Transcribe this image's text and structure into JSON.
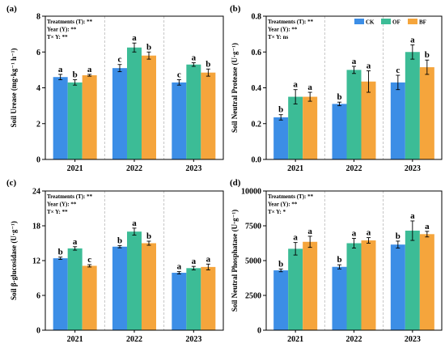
{
  "colors": {
    "CK": "#3c8ee6",
    "OF": "#3cbc96",
    "BF": "#f5a53c"
  },
  "legend": [
    "CK",
    "OF",
    "BF"
  ],
  "chart_data": [
    {
      "type": "bar",
      "panel": "(a)",
      "ylabel": "Soil Urease (mg·kg⁻¹ h⁻¹)",
      "ylim": [
        0,
        8
      ],
      "yticks": [
        0,
        2,
        4,
        6,
        8
      ],
      "ytick_labels": [
        "0",
        "2",
        "4",
        "6",
        "8"
      ],
      "categories": [
        "2021",
        "2022",
        "2023"
      ],
      "stats": [
        "Treatments (T): **",
        "Year (Y): **",
        "T× Y: **"
      ],
      "series": [
        {
          "name": "CK",
          "values": [
            4.6,
            5.1,
            4.3
          ],
          "errors": [
            0.15,
            0.2,
            0.15
          ],
          "letters": [
            "a",
            "c",
            "c"
          ]
        },
        {
          "name": "OF",
          "values": [
            4.3,
            6.25,
            5.3
          ],
          "errors": [
            0.15,
            0.25,
            0.1
          ],
          "letters": [
            "b",
            "a",
            "a"
          ]
        },
        {
          "name": "BF",
          "values": [
            4.7,
            5.8,
            4.85
          ],
          "errors": [
            0.05,
            0.2,
            0.2
          ],
          "letters": [
            "a",
            "b",
            "b"
          ]
        }
      ]
    },
    {
      "type": "bar",
      "panel": "(b)",
      "ylabel": "Soil Neutral Protease (U·g⁻¹)",
      "ylim": [
        0,
        0.8
      ],
      "yticks": [
        0,
        0.2,
        0.4,
        0.6,
        0.8
      ],
      "ytick_labels": [
        "0.0",
        "0.2",
        "0.4",
        "0.6",
        "0.8"
      ],
      "categories": [
        "2021",
        "2022",
        "2023"
      ],
      "stats": [
        "Treatments (T): **",
        "Year (Y): **",
        "T× Y: ns"
      ],
      "series": [
        {
          "name": "CK",
          "values": [
            0.235,
            0.31,
            0.43
          ],
          "errors": [
            0.015,
            0.01,
            0.04
          ],
          "letters": [
            "b",
            "b",
            "c"
          ]
        },
        {
          "name": "OF",
          "values": [
            0.35,
            0.5,
            0.6
          ],
          "errors": [
            0.04,
            0.02,
            0.04
          ],
          "letters": [
            "a",
            "a",
            "a"
          ]
        },
        {
          "name": "BF",
          "values": [
            0.35,
            0.435,
            0.515
          ],
          "errors": [
            0.025,
            0.06,
            0.04
          ],
          "letters": [
            "a",
            "a",
            "b"
          ]
        }
      ]
    },
    {
      "type": "bar",
      "panel": "(c)",
      "ylabel": "Soil β-glucosidase (U·g⁻¹)",
      "ylim": [
        0,
        24
      ],
      "yticks": [
        0,
        6,
        12,
        18,
        24
      ],
      "ytick_labels": [
        "0",
        "6",
        "12",
        "18",
        "24"
      ],
      "categories": [
        "2021",
        "2022",
        "2023"
      ],
      "stats": [
        "Treatments (T): **",
        "Year (Y): **",
        "T× Y: **"
      ],
      "series": [
        {
          "name": "CK",
          "values": [
            12.4,
            14.4,
            9.9
          ],
          "errors": [
            0.2,
            0.2,
            0.2
          ],
          "letters": [
            "b",
            "b",
            "a"
          ]
        },
        {
          "name": "OF",
          "values": [
            14.1,
            17.0,
            10.7
          ],
          "errors": [
            0.3,
            0.6,
            0.3
          ],
          "letters": [
            "a",
            "a",
            "a"
          ]
        },
        {
          "name": "BF",
          "values": [
            11.1,
            15.0,
            10.9
          ],
          "errors": [
            0.2,
            0.35,
            0.5
          ],
          "letters": [
            "c",
            "b",
            "a"
          ]
        }
      ]
    },
    {
      "type": "bar",
      "panel": "(d)",
      "ylabel": "Soil Neutral Phosphatase (U·g⁻¹)",
      "ylim": [
        0,
        10000
      ],
      "yticks": [
        0,
        2500,
        5000,
        7500,
        10000
      ],
      "ytick_labels": [
        "0",
        "2500",
        "5000",
        "7500",
        "10000"
      ],
      "categories": [
        "2021",
        "2022",
        "2023"
      ],
      "stats": [
        "Treatments (T): **",
        "Year (Y): **",
        "T× Y: *"
      ],
      "series": [
        {
          "name": "CK",
          "values": [
            4300,
            4550,
            6150
          ],
          "errors": [
            100,
            150,
            250
          ],
          "letters": [
            "b",
            "b",
            "b"
          ]
        },
        {
          "name": "OF",
          "values": [
            5850,
            6250,
            7150
          ],
          "errors": [
            450,
            350,
            700
          ],
          "letters": [
            "a",
            "a",
            "a"
          ]
        },
        {
          "name": "BF",
          "values": [
            6350,
            6450,
            6900
          ],
          "errors": [
            400,
            200,
            200
          ],
          "letters": [
            "a",
            "a",
            "a"
          ]
        }
      ]
    }
  ]
}
